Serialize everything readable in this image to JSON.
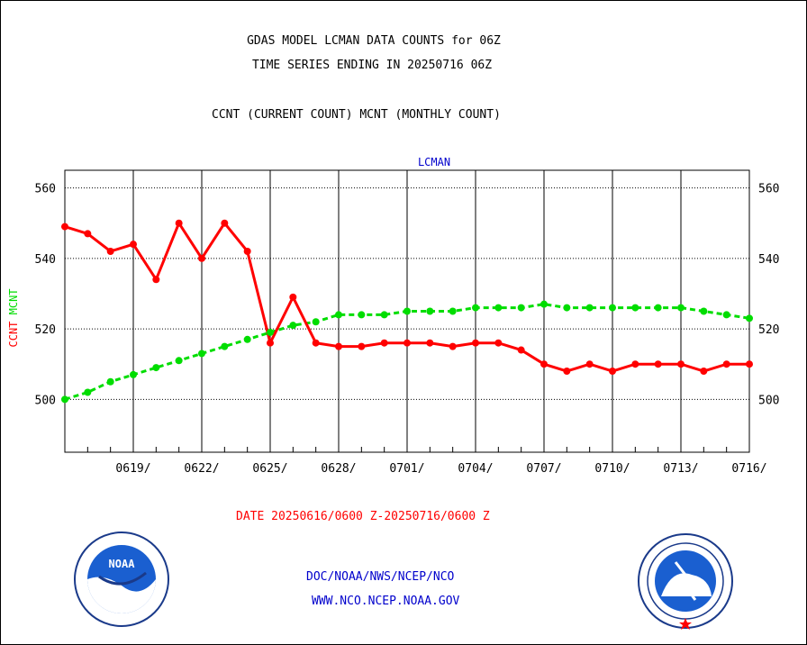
{
  "header": {
    "title_line1": "GDAS MODEL LCMAN DATA COUNTS for 06Z",
    "title_line2": "TIME SERIES ENDING IN 20250716 06Z",
    "subtitle": "CCNT (CURRENT COUNT) MCNT (MONTHLY COUNT)"
  },
  "footer": {
    "date_range": "DATE 20250616/0600 Z-20250716/0600 Z",
    "org": "DOC/NOAA/NWS/NCEP/NCO",
    "url": "WWW.NCO.NCEP.NOAA.GOV"
  },
  "logos": {
    "noaa": {
      "icon": "noaa-logo-icon",
      "text": "NOAA"
    },
    "nws": {
      "icon": "nws-logo-icon"
    }
  },
  "chart_data": {
    "type": "line",
    "title": "LCMAN",
    "ylabel_left": [
      "CCNT",
      "MCNT"
    ],
    "ylim": [
      485,
      565
    ],
    "yticks": [
      500,
      520,
      540,
      560
    ],
    "grid": true,
    "x_start_day": "20250616",
    "x": [
      "0616",
      "0617",
      "0618",
      "0619",
      "0620",
      "0621",
      "0622",
      "0623",
      "0624",
      "0625",
      "0626",
      "0627",
      "0628",
      "0629",
      "0630",
      "0701",
      "0702",
      "0703",
      "0704",
      "0705",
      "0706",
      "0707",
      "0708",
      "0709",
      "0710",
      "0711",
      "0712",
      "0713",
      "0714",
      "0715",
      "0716"
    ],
    "xtick_labels": [
      "0619/",
      "0622/",
      "0625/",
      "0628/",
      "0701/",
      "0704/",
      "0707/",
      "0710/",
      "0713/",
      "0716/"
    ],
    "series": [
      {
        "name": "CCNT",
        "color": "#ff0000",
        "style": "solid",
        "values": [
          549,
          547,
          542,
          544,
          534,
          550,
          540,
          550,
          542,
          516,
          529,
          516,
          515,
          515,
          516,
          516,
          516,
          515,
          516,
          516,
          514,
          510,
          508,
          510,
          508,
          510,
          510,
          510,
          508,
          510,
          510
        ]
      },
      {
        "name": "MCNT",
        "color": "#00dd00",
        "style": "dashed",
        "values": [
          500,
          502,
          505,
          507,
          509,
          511,
          513,
          515,
          517,
          519,
          521,
          522,
          524,
          524,
          524,
          525,
          525,
          525,
          526,
          526,
          526,
          527,
          526,
          526,
          526,
          526,
          526,
          526,
          525,
          524,
          523
        ]
      }
    ],
    "colors": {
      "axis": "#000000",
      "title": "#0000cc",
      "ccnt": "#ff0000",
      "mcnt": "#00dd00"
    }
  }
}
